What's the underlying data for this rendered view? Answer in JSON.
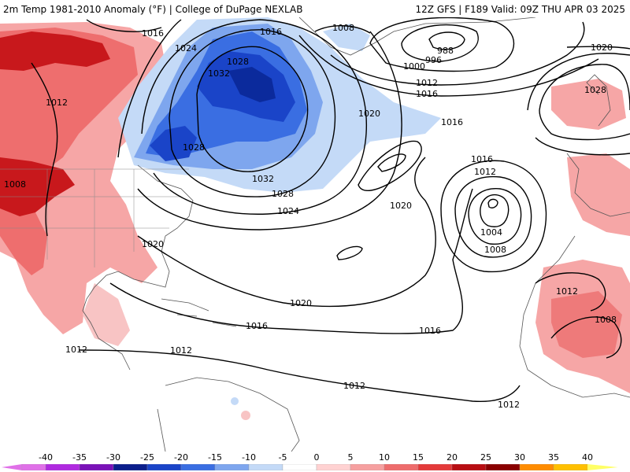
{
  "header": {
    "title": "2m Temp 1981-2010 Anomaly (°F)",
    "source": "College of DuPage NEXLAB",
    "run_info": "12Z GFS | F189 Valid: 09Z THU APR 03 2025"
  },
  "isobars": {
    "high_west": "1016",
    "canada_1024": "1024",
    "canada_1028": "1028",
    "canada_1032": "1032",
    "hudson_1016": "1016",
    "labrador_1028": "1028",
    "east_1032": "1032",
    "east_1028": "1028",
    "east_1024": "1024",
    "plains_1012": "1012",
    "plains_1008": "1008",
    "atl_1020": "1020",
    "atl_1016": "1016",
    "atl_1020_b": "1020",
    "greenland_1008": "1008",
    "north_988": "988",
    "north_996": "996",
    "north_1000": "1000",
    "north_1012": "1012",
    "north_1016": "1016",
    "north_1020": "1020",
    "uk_1028": "1028",
    "low_1016": "1016",
    "low_1012": "1012",
    "low_1004": "1004",
    "low_1008": "1008",
    "gulf_1020": "1020",
    "central_1020": "1020",
    "south_1016": "1016",
    "sw_1016": "1016",
    "carib_1012": "1012",
    "west_1012": "1012",
    "south_1012": "1012",
    "sa_1012": "1012",
    "africa_1012": "1012",
    "africa_1008": "1008"
  },
  "legend": {
    "labels": [
      "-40",
      "-35",
      "-30",
      "-25",
      "-20",
      "-15",
      "-10",
      "-5",
      "0",
      "5",
      "10",
      "15",
      "20",
      "25",
      "30",
      "35",
      "40"
    ],
    "colors": [
      "#e070e8",
      "#b02ae0",
      "#7a12b8",
      "#0b1f8c",
      "#1a44c8",
      "#3a6ee2",
      "#7ea6ee",
      "#c4daf7",
      "#ffffff",
      "#ffd2d2",
      "#f6a0a0",
      "#ee6c6c",
      "#e43a3a",
      "#b80e12",
      "#8a0000",
      "#ff8c00",
      "#ffc000",
      "#ffff66"
    ]
  }
}
